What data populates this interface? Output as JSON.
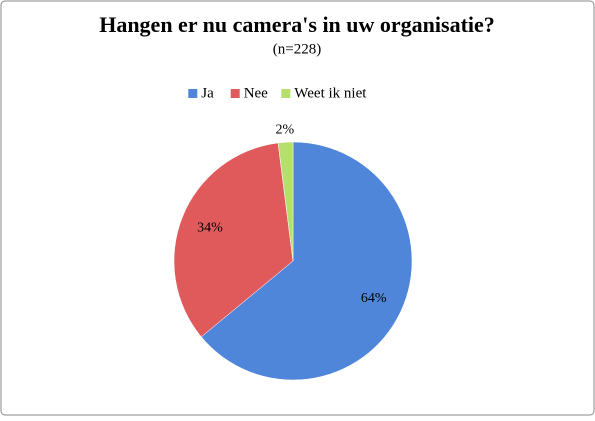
{
  "chart_data": {
    "type": "pie",
    "title": "Hangen er nu camera's in uw organisatie?",
    "subtitle": "(n=228)",
    "categories": [
      "Ja",
      "Nee",
      "Weet ik niet"
    ],
    "values": [
      64,
      34,
      2
    ],
    "value_labels": [
      "64%",
      "34%",
      "2%"
    ],
    "colors": [
      "#4f86d9",
      "#e05a5c",
      "#b6e06e"
    ],
    "legend": "top"
  }
}
